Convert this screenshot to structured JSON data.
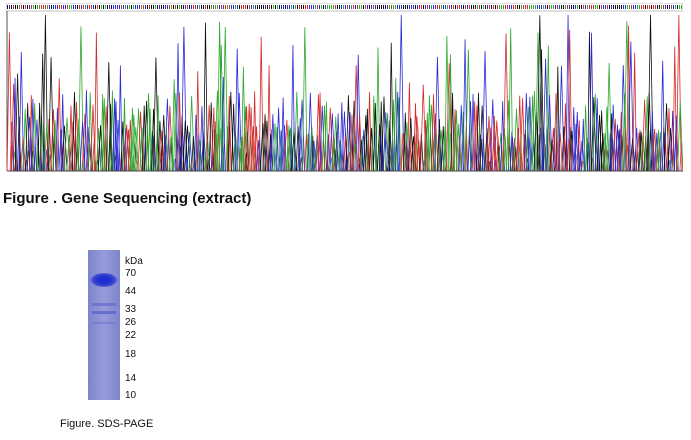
{
  "sequencing_figure": {
    "caption": "Figure . Gene Sequencing (extract)",
    "base_colors": {
      "A": "#2ea82e",
      "C": "#2a2ad8",
      "G": "#111111",
      "T": "#d42a2a"
    },
    "peak_count": 340
  },
  "sds_page_figure": {
    "caption": "Figure. SDS-PAGE",
    "unit": "kDa",
    "markers": [
      "70",
      "44",
      "33",
      "26",
      "22",
      "18",
      "14",
      "10"
    ],
    "lane_color": "#8f95d6",
    "main_band_color": "#1c2fd0"
  }
}
